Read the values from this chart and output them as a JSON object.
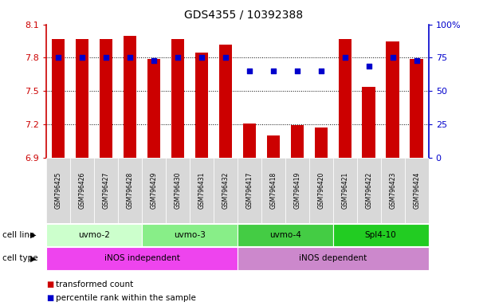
{
  "title": "GDS4355 / 10392388",
  "samples": [
    "GSM796425",
    "GSM796426",
    "GSM796427",
    "GSM796428",
    "GSM796429",
    "GSM796430",
    "GSM796431",
    "GSM796432",
    "GSM796417",
    "GSM796418",
    "GSM796419",
    "GSM796420",
    "GSM796421",
    "GSM796422",
    "GSM796423",
    "GSM796424"
  ],
  "bar_heights": [
    7.97,
    7.97,
    7.97,
    8.0,
    7.79,
    7.97,
    7.85,
    7.92,
    7.21,
    7.1,
    7.19,
    7.17,
    7.97,
    7.54,
    7.95,
    7.79
  ],
  "percentile_vals": [
    75,
    75,
    75,
    75,
    73,
    75,
    75,
    75,
    65,
    65,
    65,
    65,
    75,
    69,
    75,
    73
  ],
  "ymin": 6.9,
  "ymax": 8.1,
  "yticks": [
    6.9,
    7.2,
    7.5,
    7.8,
    8.1
  ],
  "ytick_labels": [
    "6.9",
    "7.2",
    "7.5",
    "7.8",
    "8.1"
  ],
  "right_yticks": [
    0,
    25,
    50,
    75,
    100
  ],
  "right_ytick_labels": [
    "0",
    "25",
    "50",
    "75",
    "100%"
  ],
  "bar_color": "#cc0000",
  "dot_color": "#0000cc",
  "grid_yticks": [
    7.2,
    7.5,
    7.8
  ],
  "cell_lines": [
    {
      "label": "uvmo-2",
      "start": 0,
      "end": 3,
      "color": "#ccffcc"
    },
    {
      "label": "uvmo-3",
      "start": 4,
      "end": 7,
      "color": "#88ee88"
    },
    {
      "label": "uvmo-4",
      "start": 8,
      "end": 11,
      "color": "#44cc44"
    },
    {
      "label": "Spl4-10",
      "start": 12,
      "end": 15,
      "color": "#22cc22"
    }
  ],
  "cell_types": [
    {
      "label": "iNOS independent",
      "start": 0,
      "end": 7,
      "color": "#ee55ee"
    },
    {
      "label": "iNOS dependent",
      "start": 8,
      "end": 15,
      "color": "#dd99dd"
    }
  ],
  "legend_items": [
    {
      "label": "transformed count",
      "color": "#cc0000"
    },
    {
      "label": "percentile rank within the sample",
      "color": "#0000cc"
    }
  ],
  "left_tick_color": "#cc0000",
  "right_tick_color": "#0000cc"
}
